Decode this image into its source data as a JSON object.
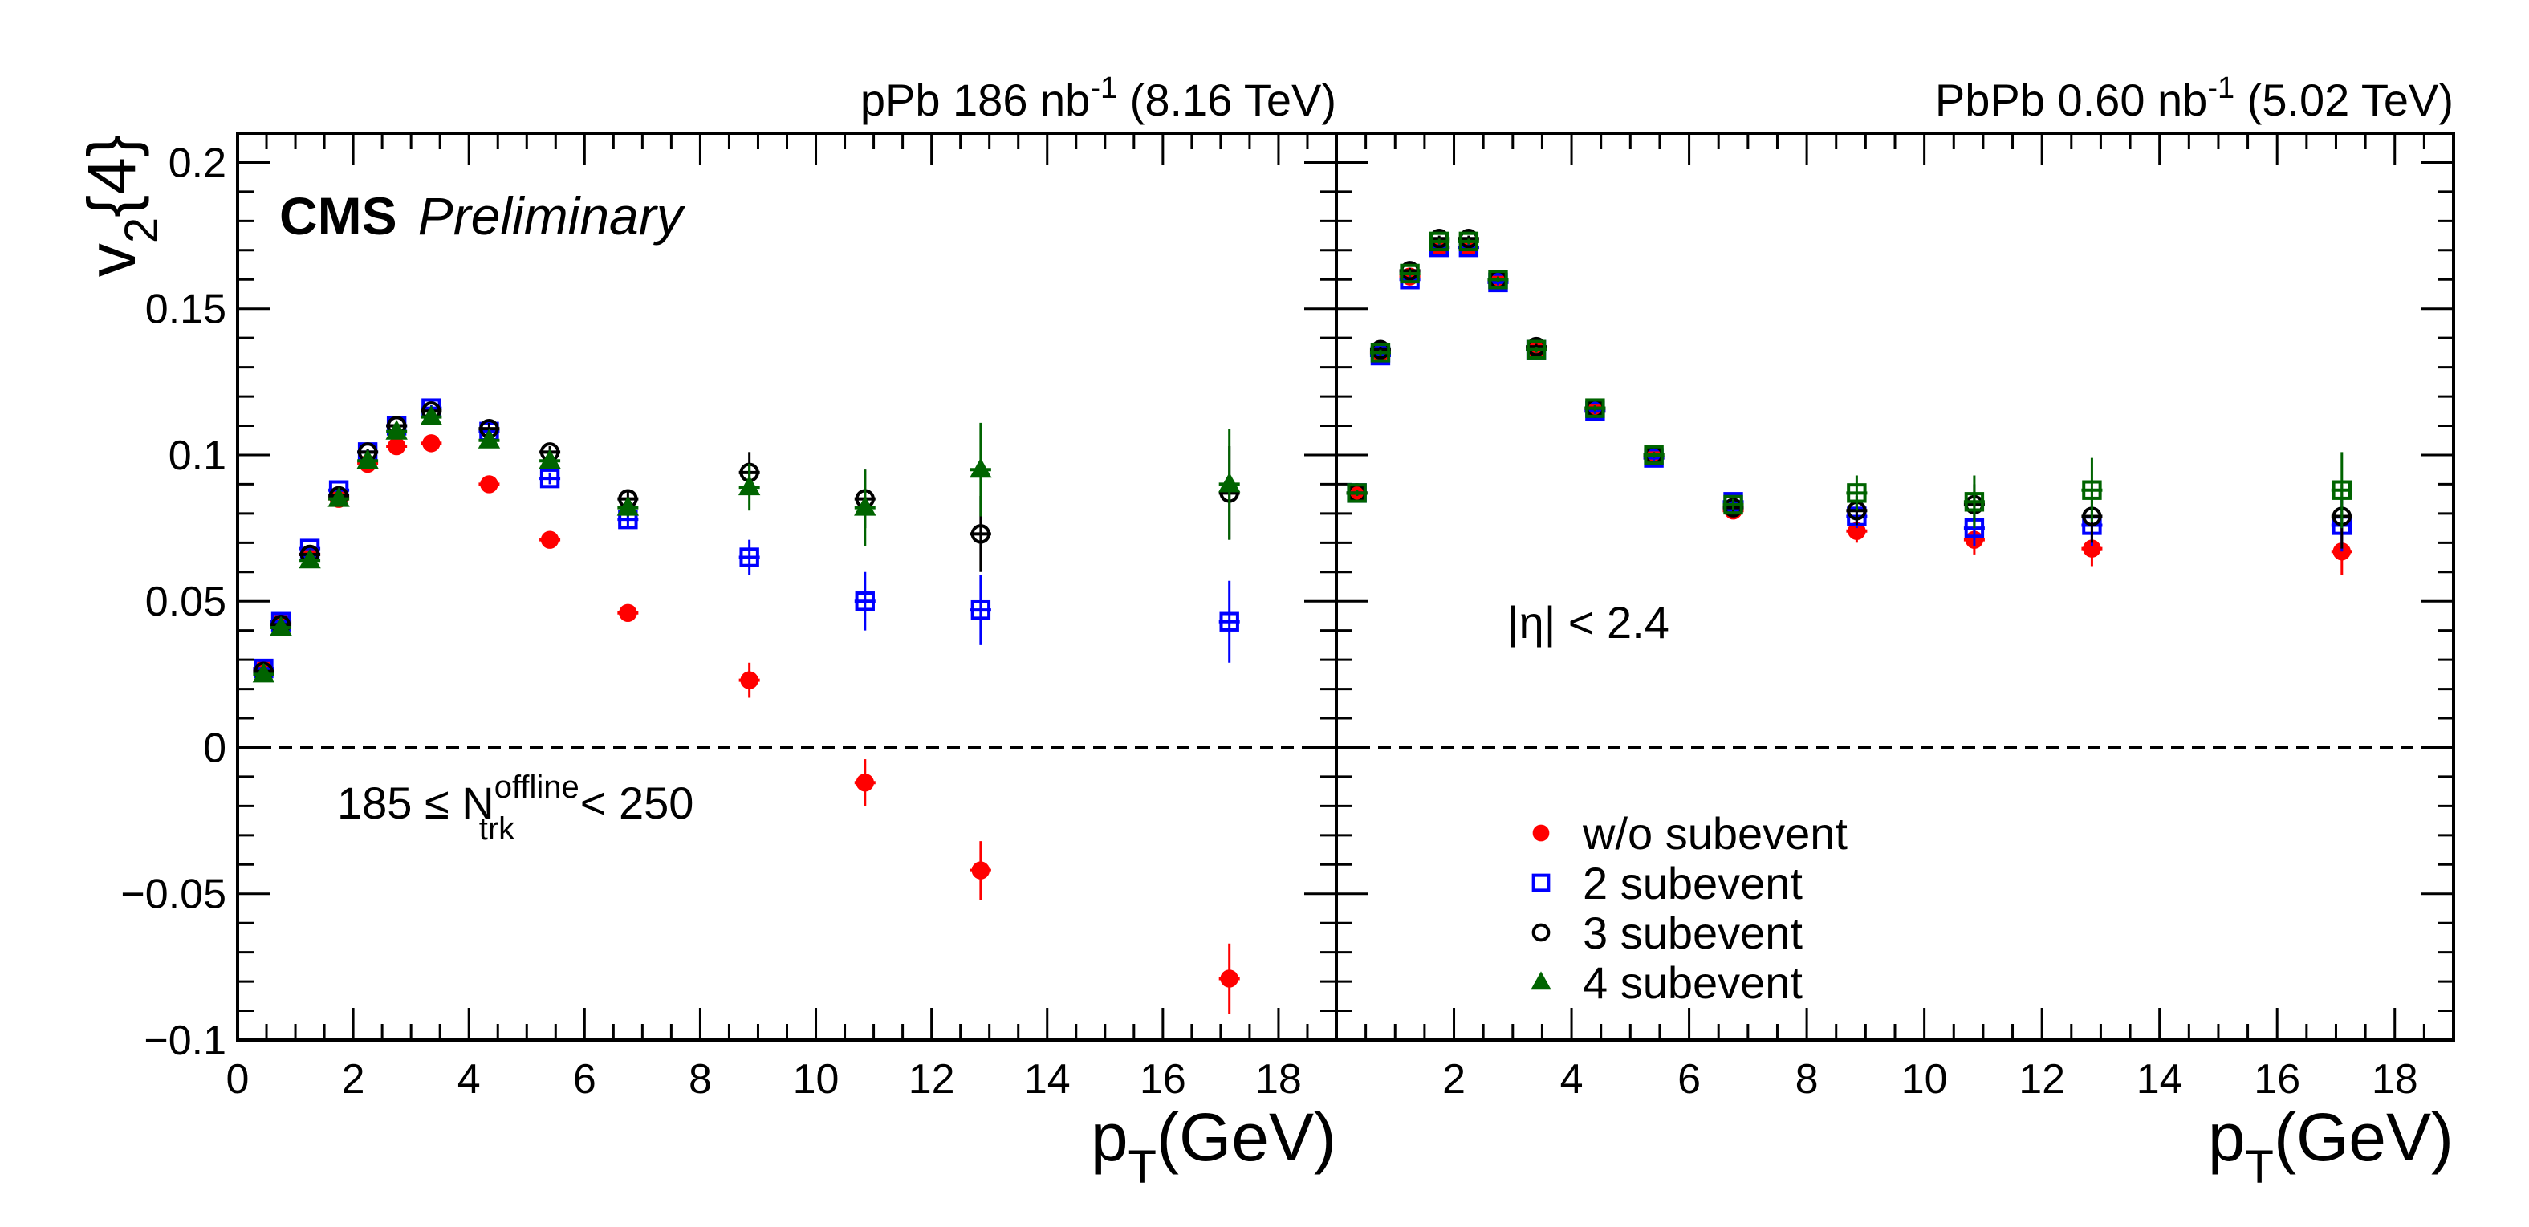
{
  "chart_data": [
    {
      "type": "scatter",
      "panel": "left",
      "title": {
        "text": "pPb 186 nb",
        "sup": "-1",
        "tail": " (8.16 TeV)"
      },
      "xlabel": {
        "main": "p",
        "sub": "T",
        "tail": "(GeV)"
      },
      "ylabel": {
        "main": "v",
        "sub": "2",
        "tail": "{4}"
      },
      "xlim": [
        0,
        19
      ],
      "ylim": [
        -0.1,
        0.21
      ],
      "x_ticks": [
        0,
        2,
        4,
        6,
        8,
        10,
        12,
        14,
        16,
        18
      ],
      "x_tick_labels": [
        "0",
        "2",
        "4",
        "6",
        "8",
        "10",
        "12",
        "14",
        "16",
        "18"
      ],
      "y_ticks": [
        -0.1,
        -0.05,
        0,
        0.05,
        0.1,
        0.15,
        0.2
      ],
      "y_tick_labels": [
        "−0.1",
        "−0.05",
        "0",
        "0.05",
        "0.1",
        "0.15",
        "0.2"
      ],
      "zero_line": true,
      "brand": {
        "bold": "CMS",
        "italic": "Preliminary"
      },
      "annotation": {
        "pre": "185 ≤ N",
        "sup": "offline",
        "sub": "trk",
        "post": " < 250"
      },
      "series": [
        {
          "name": "w/o subevent",
          "marker": "circle-filled",
          "color": "#ff0000",
          "x": [
            0.45,
            0.75,
            1.25,
            1.75,
            2.25,
            2.75,
            3.35,
            4.35,
            5.4,
            6.75,
            8.85,
            10.85,
            12.85,
            17.15
          ],
          "y": [
            0.027,
            0.043,
            0.066,
            0.085,
            0.097,
            0.103,
            0.104,
            0.09,
            0.071,
            0.046,
            0.023,
            -0.012,
            -0.042,
            -0.079
          ],
          "err": [
            0.001,
            0.001,
            0.001,
            0.001,
            0.001,
            0.001,
            0.001,
            0.001,
            0.001,
            0.002,
            0.006,
            0.008,
            0.01,
            0.012
          ]
        },
        {
          "name": "2 subevent",
          "marker": "square-open",
          "color": "#0000ff",
          "x": [
            0.45,
            0.75,
            1.25,
            1.75,
            2.25,
            2.75,
            3.35,
            4.35,
            5.4,
            6.75,
            8.85,
            10.85,
            12.85,
            17.15
          ],
          "y": [
            0.027,
            0.043,
            0.068,
            0.088,
            0.101,
            0.11,
            0.116,
            0.108,
            0.092,
            0.078,
            0.065,
            0.05,
            0.047,
            0.043
          ],
          "err": [
            0.001,
            0.001,
            0.001,
            0.001,
            0.001,
            0.001,
            0.001,
            0.002,
            0.002,
            0.003,
            0.006,
            0.01,
            0.012,
            0.014
          ]
        },
        {
          "name": "3 subevent",
          "marker": "circle-open",
          "color": "#000000",
          "x": [
            0.45,
            0.75,
            1.25,
            1.75,
            2.25,
            2.75,
            3.35,
            4.35,
            5.4,
            6.75,
            8.85,
            10.85,
            12.85,
            17.15
          ],
          "y": [
            0.026,
            0.042,
            0.066,
            0.086,
            0.101,
            0.11,
            0.115,
            0.109,
            0.101,
            0.085,
            0.094,
            0.085,
            0.073,
            0.087
          ],
          "err": [
            0.001,
            0.001,
            0.001,
            0.001,
            0.001,
            0.001,
            0.001,
            0.002,
            0.002,
            0.003,
            0.007,
            0.01,
            0.013,
            0.016
          ]
        },
        {
          "name": "4 subevent",
          "marker": "triangle-filled",
          "color": "#006400",
          "x": [
            0.45,
            0.75,
            1.25,
            1.75,
            2.25,
            2.75,
            3.35,
            4.35,
            5.4,
            6.75,
            8.85,
            10.85,
            12.85,
            17.15
          ],
          "y": [
            0.025,
            0.041,
            0.064,
            0.085,
            0.098,
            0.108,
            0.113,
            0.105,
            0.098,
            0.082,
            0.089,
            0.082,
            0.095,
            0.09
          ],
          "err": [
            0.001,
            0.001,
            0.001,
            0.001,
            0.001,
            0.001,
            0.001,
            0.002,
            0.002,
            0.003,
            0.008,
            0.013,
            0.016,
            0.019
          ]
        }
      ]
    },
    {
      "type": "scatter",
      "panel": "right",
      "title": {
        "text": "PbPb 0.60 nb",
        "sup": "-1",
        "tail": " (5.02 TeV)"
      },
      "xlabel": {
        "main": "p",
        "sub": "T",
        "tail": "(GeV)"
      },
      "xlim": [
        0,
        19
      ],
      "ylim": [
        -0.1,
        0.21
      ],
      "x_ticks": [
        2,
        4,
        6,
        8,
        10,
        12,
        14,
        16,
        18
      ],
      "x_tick_labels": [
        "2",
        "4",
        "6",
        "8",
        "10",
        "12",
        "14",
        "16",
        "18"
      ],
      "y_ticks": [
        -0.1,
        -0.05,
        0,
        0.05,
        0.1,
        0.15,
        0.2
      ],
      "zero_line": true,
      "annotation": {
        "text": "|η| < 2.4"
      },
      "legend": {
        "position": "bottom-center",
        "entries": [
          "w/o subevent",
          "2 subevent",
          "3 subevent",
          "4 subevent"
        ]
      },
      "series": [
        {
          "name": "w/o subevent",
          "marker": "circle-filled",
          "color": "#ff0000",
          "x": [
            0.35,
            0.75,
            1.25,
            1.75,
            2.25,
            2.75,
            3.4,
            4.4,
            5.4,
            6.75,
            8.85,
            10.85,
            12.85,
            17.1
          ],
          "y": [
            0.087,
            0.135,
            0.161,
            0.171,
            0.171,
            0.159,
            0.136,
            0.115,
            0.099,
            0.081,
            0.074,
            0.071,
            0.068,
            0.067
          ],
          "err": [
            0.001,
            0.001,
            0.001,
            0.001,
            0.001,
            0.001,
            0.001,
            0.001,
            0.001,
            0.002,
            0.004,
            0.005,
            0.006,
            0.008
          ]
        },
        {
          "name": "2 subevent",
          "marker": "square-open",
          "color": "#0000ff",
          "x": [
            0.35,
            0.75,
            1.25,
            1.75,
            2.25,
            2.75,
            3.4,
            4.4,
            5.4,
            6.75,
            8.85,
            10.85,
            12.85,
            17.1
          ],
          "y": [
            0.087,
            0.134,
            0.16,
            0.171,
            0.171,
            0.159,
            0.136,
            0.115,
            0.099,
            0.084,
            0.079,
            0.075,
            0.076,
            0.076
          ],
          "err": [
            0.001,
            0.001,
            0.001,
            0.001,
            0.001,
            0.001,
            0.001,
            0.001,
            0.001,
            0.002,
            0.004,
            0.006,
            0.007,
            0.009
          ]
        },
        {
          "name": "3 subevent",
          "marker": "circle-open",
          "color": "#000000",
          "x": [
            0.35,
            0.75,
            1.25,
            1.75,
            2.25,
            2.75,
            3.4,
            4.4,
            5.4,
            6.75,
            8.85,
            10.85,
            12.85,
            17.1
          ],
          "y": [
            0.087,
            0.136,
            0.163,
            0.174,
            0.174,
            0.16,
            0.137,
            0.116,
            0.1,
            0.082,
            0.081,
            0.083,
            0.079,
            0.079
          ],
          "err": [
            0.001,
            0.001,
            0.001,
            0.001,
            0.001,
            0.001,
            0.001,
            0.001,
            0.001,
            0.002,
            0.005,
            0.007,
            0.009,
            0.011
          ]
        },
        {
          "name": "4 subevent",
          "marker": "square-open",
          "color": "#006400",
          "x": [
            0.35,
            0.75,
            1.25,
            1.75,
            2.25,
            2.75,
            3.4,
            4.4,
            5.4,
            6.75,
            8.85,
            10.85,
            12.85,
            17.1
          ],
          "y": [
            0.087,
            0.135,
            0.162,
            0.173,
            0.173,
            0.16,
            0.136,
            0.116,
            0.1,
            0.083,
            0.087,
            0.084,
            0.088,
            0.088
          ],
          "err": [
            0.001,
            0.001,
            0.001,
            0.001,
            0.001,
            0.001,
            0.001,
            0.001,
            0.001,
            0.002,
            0.006,
            0.009,
            0.011,
            0.013
          ]
        }
      ]
    }
  ]
}
